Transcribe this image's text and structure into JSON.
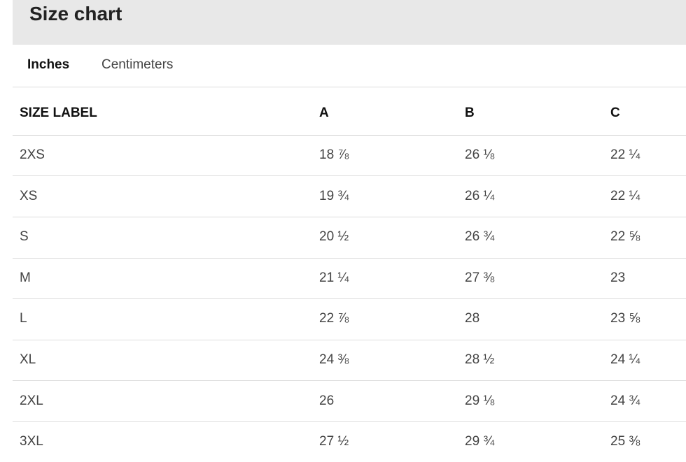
{
  "header": {
    "title": "Size chart"
  },
  "tabs": [
    "Inches",
    "Centimeters"
  ],
  "table": {
    "columns": [
      "SIZE LABEL",
      "A",
      "B",
      "C"
    ],
    "rows": [
      [
        "2XS",
        "18 ⅞",
        "26 ⅛",
        "22 ¼"
      ],
      [
        "XS",
        "19 ¾",
        "26 ¼",
        "22 ¼"
      ],
      [
        "S",
        "20 ½",
        "26 ¾",
        "22 ⅝"
      ],
      [
        "M",
        "21 ¼",
        "27 ⅜",
        "23"
      ],
      [
        "L",
        "22 ⅞",
        "28",
        "23 ⅝"
      ],
      [
        "XL",
        "24 ⅜",
        "28 ½",
        "24 ¼"
      ],
      [
        "2XL",
        "26",
        "29 ⅛",
        "24 ¾"
      ],
      [
        "3XL",
        "27 ½",
        "29 ¾",
        "25 ⅜"
      ]
    ]
  }
}
